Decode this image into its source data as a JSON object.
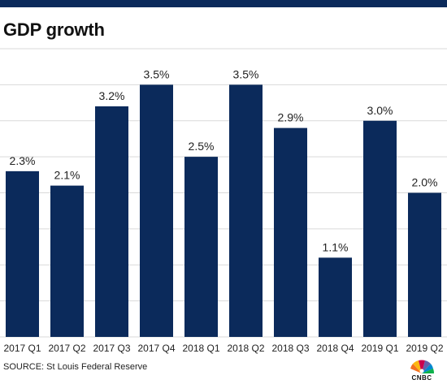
{
  "title": "GDP growth",
  "source": "SOURCE: St Louis Federal Reserve",
  "logo_text": "CNBC",
  "colors": {
    "bar": "#0b2a5b",
    "grid": "#d9d9d9",
    "text": "#222222"
  },
  "chart_data": {
    "type": "bar",
    "title": "GDP growth",
    "categories": [
      "2017 Q1",
      "2017 Q2",
      "2017 Q3",
      "2017 Q4",
      "2018 Q1",
      "2018 Q2",
      "2018 Q3",
      "2018 Q4",
      "2019 Q1",
      "2019 Q2"
    ],
    "values": [
      2.3,
      2.1,
      3.2,
      3.5,
      2.5,
      3.5,
      2.9,
      1.1,
      3.0,
      2.0
    ],
    "value_labels": [
      "2.3%",
      "2.1%",
      "3.2%",
      "3.5%",
      "2.5%",
      "3.5%",
      "2.9%",
      "1.1%",
      "3.0%",
      "2.0%"
    ],
    "xlabel": "",
    "ylabel": "",
    "ylim": [
      0,
      4
    ],
    "grid": true,
    "legend": "none"
  }
}
